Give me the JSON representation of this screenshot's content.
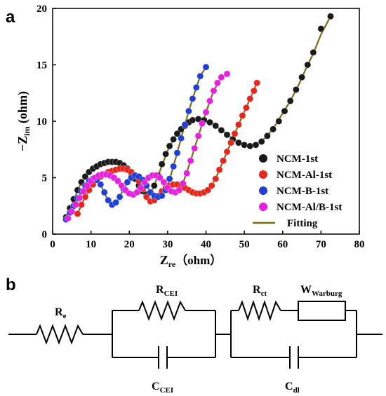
{
  "panels": {
    "a": "a",
    "b": "b"
  },
  "chart_data": {
    "type": "scatter",
    "xlabel": {
      "main": "Z",
      "sub": "re",
      "unit": "（ohm）"
    },
    "ylabel": {
      "prefix": "−Z",
      "sub": "im",
      "unit": " (ohm)"
    },
    "xlim": [
      0,
      80
    ],
    "ylim": [
      0,
      20
    ],
    "xticks": [
      0,
      10,
      20,
      30,
      40,
      50,
      60,
      70,
      80
    ],
    "yticks": [
      0,
      5,
      10,
      15,
      20
    ],
    "grid": false,
    "legend_position": "right",
    "series": [
      {
        "name": "NCM-1st",
        "color": "#1a1a1a",
        "points": [
          [
            3.5,
            1.5
          ],
          [
            4.5,
            2.3
          ],
          [
            5.5,
            3.1
          ],
          [
            6.5,
            3.9
          ],
          [
            7.5,
            4.6
          ],
          [
            8.5,
            5.1
          ],
          [
            9.5,
            5.5
          ],
          [
            10.5,
            5.8
          ],
          [
            11.5,
            6.0
          ],
          [
            12.5,
            6.2
          ],
          [
            13.5,
            6.3
          ],
          [
            14.5,
            6.4
          ],
          [
            15.5,
            6.4
          ],
          [
            16.5,
            6.4
          ],
          [
            17.5,
            6.3
          ],
          [
            18.5,
            6.1
          ],
          [
            19.5,
            5.8
          ],
          [
            20.5,
            5.4
          ],
          [
            21.5,
            4.9
          ],
          [
            22.5,
            4.3
          ],
          [
            23.5,
            3.8
          ],
          [
            24.5,
            3.5
          ],
          [
            25.5,
            3.7
          ],
          [
            26.5,
            4.3
          ],
          [
            27.5,
            5.2
          ],
          [
            28.5,
            6.2
          ],
          [
            29.5,
            7.1
          ],
          [
            30.5,
            7.8
          ],
          [
            31.5,
            8.4
          ],
          [
            32.5,
            8.9
          ],
          [
            33.5,
            9.3
          ],
          [
            34.5,
            9.6
          ],
          [
            35.5,
            9.9
          ],
          [
            36.5,
            10.1
          ],
          [
            38,
            10.2
          ],
          [
            39.5,
            10.1
          ],
          [
            41,
            9.9
          ],
          [
            42.5,
            9.6
          ],
          [
            44,
            9.2
          ],
          [
            45.5,
            8.8
          ],
          [
            47,
            8.4
          ],
          [
            48.5,
            8.1
          ],
          [
            50,
            7.9
          ],
          [
            51.5,
            7.8
          ],
          [
            53,
            7.9
          ],
          [
            54.5,
            8.2
          ],
          [
            56,
            8.7
          ],
          [
            57.5,
            9.3
          ],
          [
            59,
            10.0
          ],
          [
            60.5,
            10.9
          ],
          [
            62,
            11.8
          ],
          [
            63.5,
            12.8
          ],
          [
            65,
            13.9
          ],
          [
            66.5,
            15.0
          ],
          [
            68,
            16.1
          ],
          [
            70,
            18.2
          ],
          [
            72.5,
            19.3
          ]
        ]
      },
      {
        "name": "NCM-Al-1st",
        "color": "#e8251b",
        "points": [
          [
            6.5,
            1.8
          ],
          [
            7.5,
            2.6
          ],
          [
            8.5,
            3.3
          ],
          [
            9.5,
            3.9
          ],
          [
            10.5,
            4.4
          ],
          [
            11.5,
            4.8
          ],
          [
            12.5,
            5.1
          ],
          [
            13.5,
            5.3
          ],
          [
            14.5,
            5.5
          ],
          [
            15.5,
            5.6
          ],
          [
            16.5,
            5.7
          ],
          [
            17.5,
            5.8
          ],
          [
            18.5,
            5.8
          ],
          [
            19.5,
            5.7
          ],
          [
            20.5,
            5.5
          ],
          [
            21.5,
            5.2
          ],
          [
            22.5,
            4.7
          ],
          [
            23.5,
            4.0
          ],
          [
            24.5,
            3.3
          ],
          [
            25.5,
            2.9
          ],
          [
            26.5,
            3.0
          ],
          [
            27.5,
            3.4
          ],
          [
            28.5,
            3.8
          ],
          [
            29.5,
            4.1
          ],
          [
            30.5,
            4.3
          ],
          [
            31.5,
            4.4
          ],
          [
            32.5,
            4.4
          ],
          [
            33.5,
            4.3
          ],
          [
            34.5,
            4.1
          ],
          [
            35.5,
            3.9
          ],
          [
            36.5,
            3.7
          ],
          [
            37.5,
            3.6
          ],
          [
            38.5,
            3.6
          ],
          [
            39.5,
            3.7
          ],
          [
            40.5,
            3.9
          ],
          [
            41.5,
            4.3
          ],
          [
            42.5,
            4.9
          ],
          [
            43.5,
            5.7
          ],
          [
            44.5,
            6.5
          ],
          [
            45.5,
            7.3
          ],
          [
            46.5,
            8.1
          ],
          [
            47.5,
            8.9
          ],
          [
            48.5,
            9.7
          ],
          [
            49.5,
            10.5
          ],
          [
            50.5,
            11.2
          ],
          [
            51.5,
            12.0
          ],
          [
            52.5,
            12.7
          ],
          [
            53.3,
            13.4
          ]
        ]
      },
      {
        "name": "NCM-B-1st",
        "color": "#1f3fd6",
        "points": [
          [
            3.5,
            1.3
          ],
          [
            4.5,
            1.9
          ],
          [
            5.5,
            2.5
          ],
          [
            6.5,
            3.2
          ],
          [
            7.5,
            3.8
          ],
          [
            8.5,
            4.3
          ],
          [
            9.5,
            4.7
          ],
          [
            10.5,
            4.9
          ],
          [
            11.5,
            4.8
          ],
          [
            12.5,
            4.4
          ],
          [
            13.5,
            3.7
          ],
          [
            14.5,
            3.0
          ],
          [
            15.5,
            2.6
          ],
          [
            16.5,
            2.8
          ],
          [
            17.5,
            3.3
          ],
          [
            18.5,
            4.0
          ],
          [
            19.5,
            4.6
          ],
          [
            20.5,
            5.0
          ],
          [
            21.5,
            5.2
          ],
          [
            22.5,
            5.1
          ],
          [
            23.5,
            4.8
          ],
          [
            24.5,
            4.3
          ],
          [
            25.5,
            3.7
          ],
          [
            26.5,
            3.4
          ],
          [
            27.5,
            3.3
          ],
          [
            28.5,
            3.4
          ],
          [
            29.5,
            3.9
          ],
          [
            30.5,
            4.9
          ],
          [
            31.5,
            6.0
          ],
          [
            32.5,
            7.2
          ],
          [
            33.5,
            8.5
          ],
          [
            34.5,
            9.7
          ],
          [
            35.5,
            10.9
          ],
          [
            36.5,
            12.0
          ],
          [
            37.5,
            13.0
          ],
          [
            38.5,
            14.0
          ],
          [
            40,
            14.8
          ]
        ]
      },
      {
        "name": "NCM-Al/B-1st",
        "color": "#e81ee0",
        "points": [
          [
            4,
            1.4
          ],
          [
            5,
            2.0
          ],
          [
            6,
            2.6
          ],
          [
            7,
            3.2
          ],
          [
            8,
            3.8
          ],
          [
            9,
            4.3
          ],
          [
            10,
            4.7
          ],
          [
            11,
            5.0
          ],
          [
            12,
            5.2
          ],
          [
            13,
            5.3
          ],
          [
            14,
            5.3
          ],
          [
            15,
            5.2
          ],
          [
            16,
            5.0
          ],
          [
            17,
            4.7
          ],
          [
            18,
            4.3
          ],
          [
            19,
            3.9
          ],
          [
            20,
            3.6
          ],
          [
            21,
            3.5
          ],
          [
            22,
            3.7
          ],
          [
            23,
            4.1
          ],
          [
            24,
            4.6
          ],
          [
            25,
            5.0
          ],
          [
            26,
            5.2
          ],
          [
            27,
            5.2
          ],
          [
            28,
            5.0
          ],
          [
            29,
            4.6
          ],
          [
            30,
            4.1
          ],
          [
            31,
            3.8
          ],
          [
            32,
            3.7
          ],
          [
            33,
            3.9
          ],
          [
            34,
            4.5
          ],
          [
            35,
            5.4
          ],
          [
            36,
            6.5
          ],
          [
            37,
            7.6
          ],
          [
            38,
            8.7
          ],
          [
            39,
            9.8
          ],
          [
            40,
            10.8
          ],
          [
            41,
            11.8
          ],
          [
            42,
            12.7
          ],
          [
            43,
            13.4
          ],
          [
            44,
            13.9
          ],
          [
            45.5,
            14.2
          ]
        ]
      }
    ],
    "fitting": {
      "name": "Fitting",
      "color": "#7d6a14",
      "curves": [
        [
          [
            3.5,
            1.5
          ],
          [
            5,
            2.6
          ],
          [
            7,
            4.2
          ],
          [
            9,
            5.3
          ],
          [
            11,
            5.9
          ],
          [
            13,
            6.25
          ],
          [
            15,
            6.4
          ],
          [
            17,
            6.35
          ],
          [
            19,
            5.9
          ],
          [
            21,
            5.1
          ],
          [
            23,
            4.0
          ],
          [
            24.5,
            3.5
          ],
          [
            26,
            3.9
          ],
          [
            28,
            5.6
          ],
          [
            30,
            7.4
          ],
          [
            32,
            8.7
          ],
          [
            34,
            9.45
          ],
          [
            36,
            10.0
          ],
          [
            38,
            10.2
          ],
          [
            40,
            10.05
          ],
          [
            42,
            9.7
          ],
          [
            44,
            9.2
          ],
          [
            46,
            8.7
          ],
          [
            48,
            8.2
          ],
          [
            50,
            7.9
          ],
          [
            52,
            7.8
          ],
          [
            54,
            8.1
          ],
          [
            56,
            8.7
          ],
          [
            58,
            9.6
          ],
          [
            60,
            10.7
          ],
          [
            62,
            11.8
          ],
          [
            64,
            13.1
          ],
          [
            66,
            14.6
          ],
          [
            68,
            16.0
          ],
          [
            70,
            17.7
          ],
          [
            72.5,
            19.3
          ]
        ],
        [
          [
            6.5,
            1.8
          ],
          [
            8.5,
            3.3
          ],
          [
            10.5,
            4.4
          ],
          [
            12.5,
            5.1
          ],
          [
            14.5,
            5.5
          ],
          [
            16.5,
            5.7
          ],
          [
            18.5,
            5.8
          ],
          [
            20.5,
            5.5
          ],
          [
            22.5,
            4.7
          ],
          [
            24,
            3.6
          ],
          [
            25.5,
            2.9
          ],
          [
            27,
            3.2
          ],
          [
            29,
            4.0
          ],
          [
            31,
            4.4
          ],
          [
            33,
            4.35
          ],
          [
            35,
            4.0
          ],
          [
            37,
            3.65
          ],
          [
            38.5,
            3.6
          ],
          [
            40,
            3.8
          ],
          [
            41.5,
            4.3
          ],
          [
            43,
            5.3
          ],
          [
            45,
            6.9
          ],
          [
            47,
            8.5
          ],
          [
            49,
            10.1
          ],
          [
            51,
            11.6
          ],
          [
            53.3,
            13.4
          ]
        ],
        [
          [
            3.5,
            1.3
          ],
          [
            5.5,
            2.5
          ],
          [
            7.5,
            3.8
          ],
          [
            9.5,
            4.7
          ],
          [
            10.8,
            4.9
          ],
          [
            12.5,
            4.4
          ],
          [
            14,
            3.3
          ],
          [
            15.5,
            2.6
          ],
          [
            17,
            3.0
          ],
          [
            18.5,
            4.0
          ],
          [
            20.5,
            5.0
          ],
          [
            21.8,
            5.2
          ],
          [
            23.5,
            4.8
          ],
          [
            25,
            4.0
          ],
          [
            26.5,
            3.4
          ],
          [
            27.8,
            3.3
          ],
          [
            29,
            3.6
          ],
          [
            30,
            4.4
          ],
          [
            31,
            5.4
          ],
          [
            32.5,
            7.2
          ],
          [
            34,
            9.1
          ],
          [
            35.5,
            10.9
          ],
          [
            37,
            12.5
          ],
          [
            38.5,
            14.0
          ],
          [
            40,
            14.8
          ]
        ],
        [
          [
            4,
            1.4
          ],
          [
            6,
            2.6
          ],
          [
            8,
            3.8
          ],
          [
            10,
            4.7
          ],
          [
            12,
            5.2
          ],
          [
            13.5,
            5.3
          ],
          [
            15,
            5.2
          ],
          [
            17,
            4.7
          ],
          [
            19,
            3.9
          ],
          [
            21,
            3.5
          ],
          [
            23,
            4.1
          ],
          [
            25,
            5.0
          ],
          [
            26.5,
            5.2
          ],
          [
            28,
            5.0
          ],
          [
            30,
            4.1
          ],
          [
            32,
            3.7
          ],
          [
            33,
            3.9
          ],
          [
            34,
            4.5
          ],
          [
            36,
            6.5
          ],
          [
            38,
            8.7
          ],
          [
            40,
            10.8
          ],
          [
            42,
            12.7
          ],
          [
            44,
            13.9
          ],
          [
            45.5,
            14.2
          ]
        ]
      ]
    }
  },
  "circuit": {
    "re_label": {
      "main": "R",
      "sub": "e"
    },
    "rcei_label": {
      "main": "R",
      "sub": "CEI"
    },
    "ccei_label": {
      "main": "C",
      "sub": "CEI"
    },
    "rct_label": {
      "main": "R",
      "sub": "ct"
    },
    "w_label": {
      "main": "W",
      "sub": "Warburg"
    },
    "cdl_label": {
      "main": "C",
      "sub": "dl"
    }
  }
}
